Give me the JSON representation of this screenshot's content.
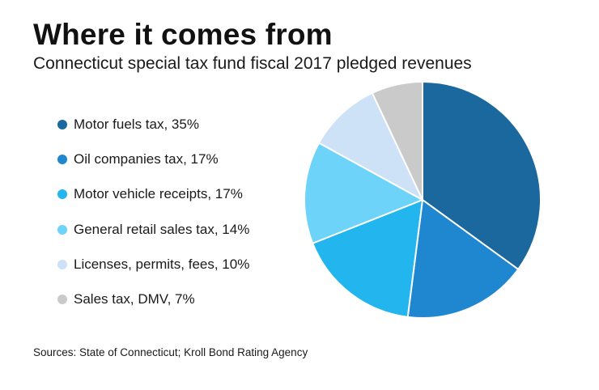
{
  "chart_data": {
    "type": "pie",
    "title": "Where it comes from",
    "subtitle": "Connecticut special tax fund fiscal 2017 pledged revenues",
    "slices": [
      {
        "label": "Motor fuels tax, 35%",
        "name": "Motor fuels tax",
        "value": 35,
        "color": "#1a689d"
      },
      {
        "label": "Oil companies tax, 17%",
        "name": "Oil companies tax",
        "value": 17,
        "color": "#1f86d0"
      },
      {
        "label": "Motor vehicle receipts, 17%",
        "name": "Motor vehicle receipts",
        "value": 17,
        "color": "#22b5ee"
      },
      {
        "label": "General retail sales tax, 14%",
        "name": "General retail sales tax",
        "value": 14,
        "color": "#6dd3f9"
      },
      {
        "label": "Licenses, permits, fees, 10%",
        "name": "Licenses, permits, fees",
        "value": 10,
        "color": "#cde2f7"
      },
      {
        "label": "Sales tax, DMV, 7%",
        "name": "Sales tax, DMV",
        "value": 7,
        "color": "#cacaca"
      }
    ],
    "legend_position": "left",
    "source": "Sources: State of Connecticut; Kroll Bond Rating Agency"
  }
}
